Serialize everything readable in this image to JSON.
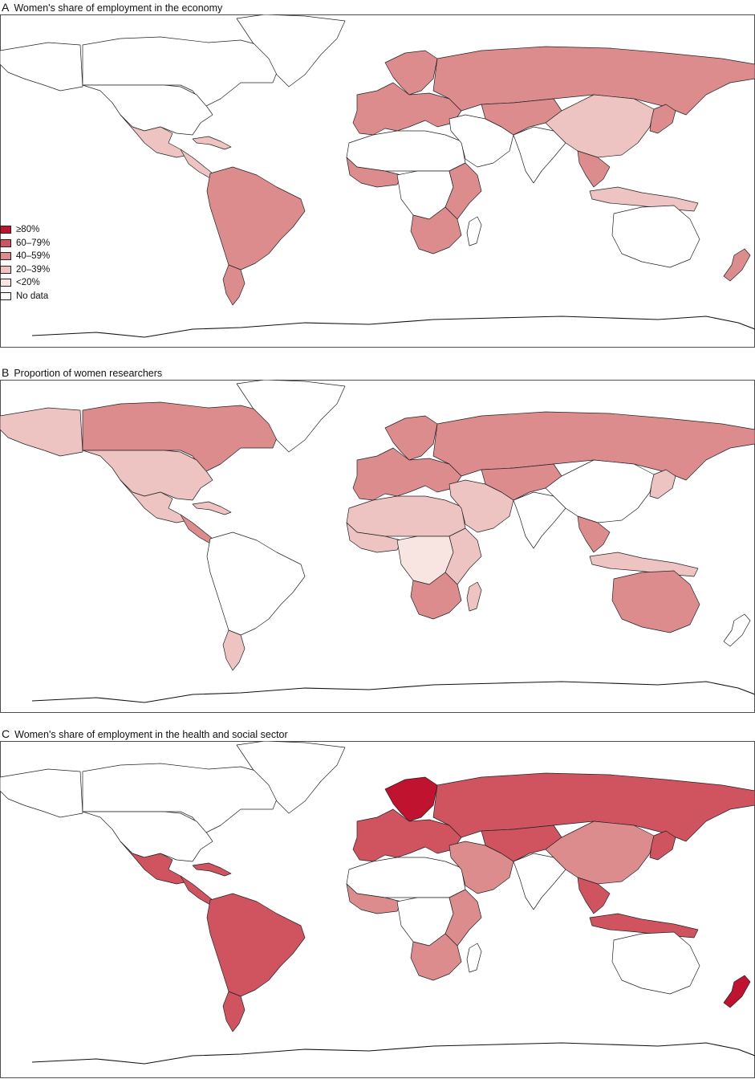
{
  "colors": {
    "c80": "#c0132f",
    "c60": "#cf5460",
    "c40": "#dd8c8e",
    "c20": "#eec4c2",
    "c0": "#f8e5e2",
    "none": "#ffffff"
  },
  "legend": [
    {
      "label": "≥80%",
      "cls": "c80"
    },
    {
      "label": "60–79%",
      "cls": "c60"
    },
    {
      "label": "40–59%",
      "cls": "c40"
    },
    {
      "label": "20–39%",
      "cls": "c20"
    },
    {
      "label": "<20%",
      "cls": "c0"
    },
    {
      "label": "No data",
      "cls": "none"
    }
  ],
  "panels": [
    {
      "letter": "A",
      "title": "Women's share of employment in the economy",
      "fills": {
        "canada": "none",
        "alaska": "none",
        "usa": "none",
        "greenland": "none",
        "mexico": "c20",
        "central_america": "c20",
        "caribbean": "c20",
        "south_america": "c40",
        "patagonia": "c40",
        "europe": "c40",
        "scandinavia": "c40",
        "russia": "c40",
        "middle_east": "none",
        "north_africa": "none",
        "west_africa": "c40",
        "central_africa": "none",
        "east_africa": "c40",
        "southern_africa": "c40",
        "central_asia": "c40",
        "china": "c20",
        "india": "none",
        "se_asia": "c40",
        "japan": "c40",
        "indonesia": "c20",
        "australia": "none",
        "new_zealand": "c40",
        "madagascar": "none"
      }
    },
    {
      "letter": "B",
      "title": "Proportion of women researchers",
      "fills": {
        "canada": "c40",
        "alaska": "c20",
        "usa": "c20",
        "greenland": "none",
        "mexico": "c20",
        "central_america": "c40",
        "caribbean": "c20",
        "south_america": "none",
        "patagonia": "c20",
        "europe": "c40",
        "scandinavia": "c40",
        "russia": "c40",
        "middle_east": "c20",
        "north_africa": "c20",
        "west_africa": "c20",
        "central_africa": "c0",
        "east_africa": "c20",
        "southern_africa": "c40",
        "central_asia": "c40",
        "china": "none",
        "india": "none",
        "se_asia": "c40",
        "japan": "c20",
        "indonesia": "c20",
        "australia": "c40",
        "new_zealand": "none",
        "madagascar": "c20"
      }
    },
    {
      "letter": "C",
      "title": "Women's share of employment in the health and social sector",
      "fills": {
        "canada": "none",
        "alaska": "none",
        "usa": "none",
        "greenland": "none",
        "mexico": "c60",
        "central_america": "c60",
        "caribbean": "c60",
        "south_america": "c60",
        "patagonia": "c60",
        "europe": "c60",
        "scandinavia": "c80",
        "russia": "c60",
        "middle_east": "c40",
        "north_africa": "none",
        "west_africa": "c40",
        "central_africa": "none",
        "east_africa": "c40",
        "southern_africa": "c40",
        "central_asia": "c60",
        "china": "c40",
        "india": "none",
        "se_asia": "c60",
        "japan": "c60",
        "indonesia": "c60",
        "australia": "none",
        "new_zealand": "c80",
        "madagascar": "none"
      }
    }
  ]
}
